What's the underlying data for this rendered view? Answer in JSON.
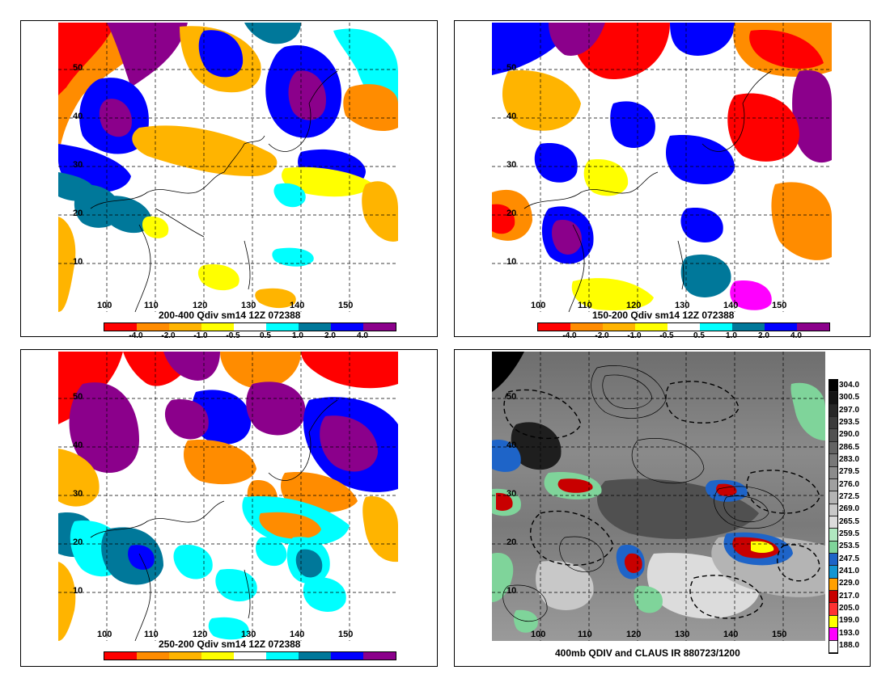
{
  "panels": [
    {
      "caption": "200-400 Qdiv sm14 12Z 072388",
      "colorbar_labels": [
        "-4.0",
        "-2.0",
        "-1.0",
        "-0.5",
        "0.5",
        "1.0",
        "2.0",
        "4.0"
      ]
    },
    {
      "caption": "150-200 Qdiv sm14 12Z 072388",
      "colorbar_labels": [
        "-4.0",
        "-2.0",
        "-1.0",
        "-0.5",
        "0.5",
        "1.0",
        "2.0",
        "4.0"
      ]
    },
    {
      "caption": "250-200 Qdiv sm14 12Z 072388",
      "colorbar_labels": []
    },
    {
      "caption": "400mb QDIV and CLAUS IR 880723/1200",
      "colorbar_labels": [
        "304.0",
        "300.5",
        "297.0",
        "293.5",
        "290.0",
        "286.5",
        "283.0",
        "279.5",
        "276.0",
        "272.5",
        "269.0",
        "265.5",
        "259.5",
        "253.5",
        "247.5",
        "241.0",
        "229.0",
        "217.0",
        "205.0",
        "199.0",
        "193.0",
        "188.0"
      ]
    }
  ],
  "axes": {
    "lat_ticks": [
      "50",
      "40",
      "30",
      "20",
      "10"
    ],
    "lon_ticks": [
      "100",
      "110",
      "120",
      "130",
      "140",
      "150"
    ]
  },
  "qdiv_colors": [
    "#ff0000",
    "#ff8c00",
    "#ffb400",
    "#ffff00",
    "#ffffff",
    "#00ffff",
    "#00789a",
    "#0000ff",
    "#8b008b"
  ],
  "ir_colors": [
    "#000000",
    "#141414",
    "#282828",
    "#3c3c3c",
    "#505050",
    "#646464",
    "#787878",
    "#8c8c8c",
    "#a0a0a0",
    "#b4b4b4",
    "#c8c8c8",
    "#dcdcdc",
    "#b0e8c0",
    "#7fd49a",
    "#1e64c8",
    "#1496d2",
    "#ffa000",
    "#c80000",
    "#ff3232",
    "#ffff00",
    "#ff00ff",
    "#ffffff"
  ]
}
